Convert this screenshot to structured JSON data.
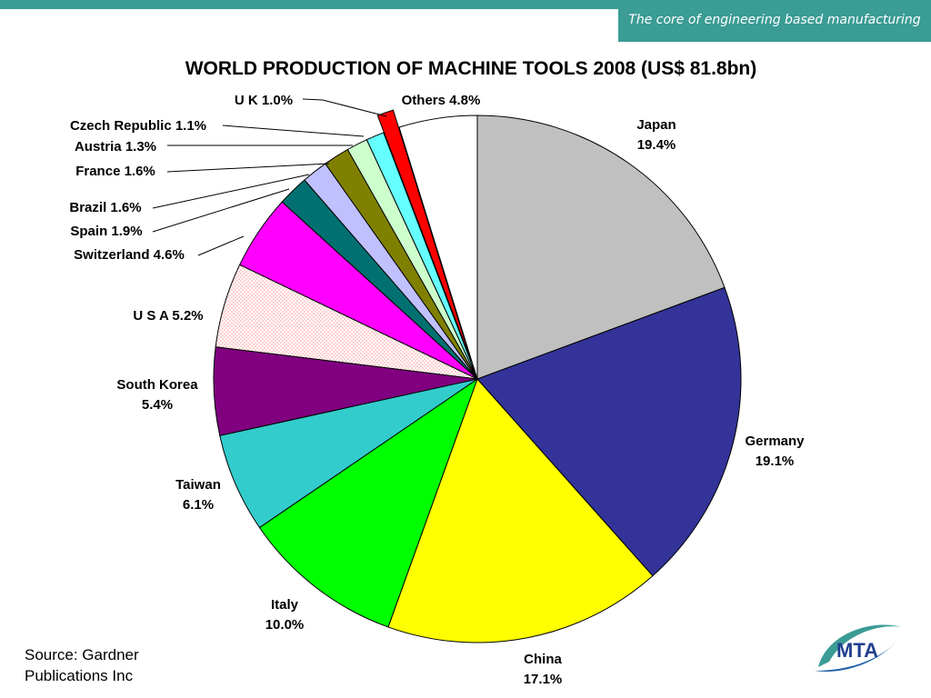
{
  "header": {
    "tagline": "The core of engineering based manufacturing"
  },
  "chart_data": {
    "type": "pie",
    "title": "WORLD PRODUCTION OF MACHINE TOOLS 2008 (US$ 81.8bn)",
    "slices": [
      {
        "label": "Japan",
        "value": 19.4,
        "value_text": "19.4%",
        "color": "#c0c0c0"
      },
      {
        "label": "Germany",
        "value": 19.1,
        "value_text": "19.1%",
        "color": "#333399"
      },
      {
        "label": "China",
        "value": 17.1,
        "value_text": "17.1%",
        "color": "#ffff00"
      },
      {
        "label": "Italy",
        "value": 10.0,
        "value_text": "10.0%",
        "color": "#00ff00"
      },
      {
        "label": "Taiwan",
        "value": 6.1,
        "value_text": "6.1%",
        "color": "#33cccc"
      },
      {
        "label": "South Korea",
        "value": 5.4,
        "value_text": "5.4%",
        "color": "#800080"
      },
      {
        "label": "U S A",
        "value": 5.2,
        "value_text": "5.2%",
        "color": "#ffe6e6",
        "pattern": "dotted"
      },
      {
        "label": "Switzerland",
        "value": 4.6,
        "value_text": "4.6%",
        "color": "#ff00ff"
      },
      {
        "label": "Spain",
        "value": 1.9,
        "value_text": "1.9%",
        "color": "#007070"
      },
      {
        "label": "Brazil",
        "value": 1.6,
        "value_text": "1.6%",
        "color": "#c0c0ff"
      },
      {
        "label": "France",
        "value": 1.6,
        "value_text": "1.6%",
        "color": "#808000"
      },
      {
        "label": "Austria",
        "value": 1.3,
        "value_text": "1.3%",
        "color": "#ccffcc"
      },
      {
        "label": "Czech Republic",
        "value": 1.1,
        "value_text": "1.1%",
        "color": "#66ffff"
      },
      {
        "label": "U K",
        "value": 1.0,
        "value_text": "1.0%",
        "color": "#ff0000",
        "exploded": true
      },
      {
        "label": "Others",
        "value": 4.8,
        "value_text": "4.8%",
        "color": "#ffffff"
      }
    ]
  },
  "source": {
    "line1": "Source: Gardner",
    "line2": "Publications Inc"
  },
  "logo": {
    "text": "MTA"
  }
}
